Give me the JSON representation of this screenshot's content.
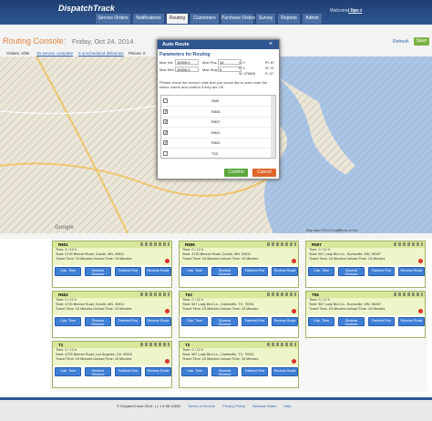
{
  "header": {
    "logo": "DispatchTrack",
    "welcome": "Welcome Tim",
    "logout": "Logout"
  },
  "nav": [
    "Service Orders",
    "Notifications",
    "Routing",
    "Customers",
    "Purchase Orders",
    "Survey",
    "Reports",
    "Admin"
  ],
  "console": {
    "title": "Routing Console:",
    "date": "Friday, Oct 24, 2014",
    "refresh": "Refresh",
    "save": "Save",
    "orders": "Orders: 4/36",
    "link1": "15 service complete",
    "link2": "0 unscheduled deliveries",
    "pieces": "Pieces: 0"
  },
  "map": {
    "google": "Google",
    "attribution": "Map data ©2014 Google",
    "terms": "Terms of Use"
  },
  "modal": {
    "title": "Auto Route",
    "close": "×",
    "section": "Parameters for Routing",
    "params": [
      {
        "label": "Max Vol:",
        "value": "10000.0"
      },
      {
        "label": "Max Pcs:",
        "value": "10"
      },
      {
        "label": "Max Wei:",
        "value": "10000.0"
      },
      {
        "label": "Max Stops:",
        "value": "5"
      }
    ],
    "stats": [
      "V: 0",
      "Pf: 67",
      "P: 0",
      "St: 37",
      "W: 376606",
      "S: 37"
    ],
    "instructions": "Please check the service units that you would like to auto route the select orders and confirm if they are OK",
    "units": [
      {
        "name": "SM4",
        "checked": false
      },
      {
        "name": "R506",
        "checked": true
      },
      {
        "name": "R507",
        "checked": true
      },
      {
        "name": "R601",
        "checked": true
      },
      {
        "name": "R602",
        "checked": true
      },
      {
        "name": "T03",
        "checked": false
      }
    ],
    "confirm": "Confirm",
    "cancel": "Cancel"
  },
  "cards": [
    {
      "name": "R601",
      "time": "Time: 0 / 12 h",
      "start": "Start: 4725 Bennet Road, Duluth, MN, 30811",
      "travel": "Travel Time: 15 Minutes Unload Time: 15 Minutes"
    },
    {
      "name": "R506",
      "time": "Time: 0 / 12 h",
      "start": "Start: 4725 Bennet Road, Duluth, MN, 30811",
      "travel": "Travel Time: 15 Minutes Unload Time: 15 Minutes"
    },
    {
      "name": "R507",
      "time": "Time: 0 / 12 h",
      "start": "Start: 967 Lady Bird Ln., Burnsville, MN, 55337",
      "travel": "Travel Time: 15 Minutes Unload Time: 15 Minutes"
    },
    {
      "name": "R602",
      "time": "Time: 0 / 12 h",
      "start": "Start: 4725 Bennet Road, Duluth, MN, 30811",
      "travel": "Travel Time: 15 Minutes Unload Time: 15 Minutes"
    },
    {
      "name": "T03",
      "time": "Time: 0 / 12 h",
      "start": "Start: 967 Lady Bird Ln., Clarksville, TX, 75001",
      "travel": "Travel Time: 15 Minutes Unload Time: 15 Minutes"
    },
    {
      "name": "T05",
      "time": "Time: 0 / 12 h",
      "start": "Start: 967 Lady Bird Ln., Burnsville, MN, 55337",
      "travel": "Travel Time: 15 Minutes Unload Time: 15 Minutes"
    },
    {
      "name": "T1",
      "time": "Time: 0 / 12 h",
      "start": "Start: 4725 Bennet Road, Los Angeles, CA, 90001",
      "travel": "Travel Time: 15 Minutes Unload Time: 15 Minutes"
    },
    {
      "name": "T2",
      "time": "Time: 0 / 12 h",
      "start": "Start: 967 Lady Bird Ln., Clarksville, TX, 75001",
      "travel": "Travel Time: 15 Minutes Unload Time: 15 Minutes"
    }
  ],
  "card_buttons": [
    "Calc. Time",
    "Shortest Distance",
    "Farthest First",
    "Reverse Route"
  ],
  "footer": [
    "© DispatchTrack 2014. | v 1.5.88.10830",
    "Terms of Service",
    "Privacy Policy",
    "Release Notes",
    "Help"
  ]
}
